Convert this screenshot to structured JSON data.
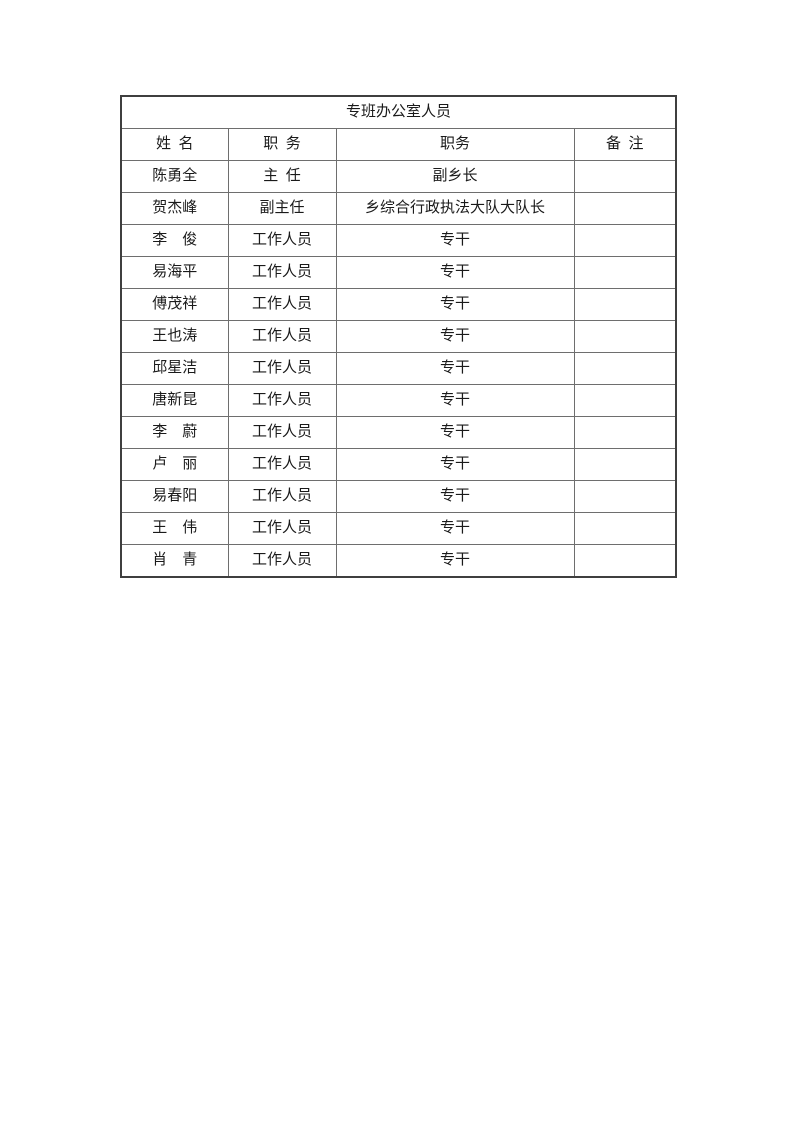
{
  "page": {
    "background": "#ffffff",
    "text_color": "#1a1a1a",
    "grid_color": "#6e6e6e",
    "outer_border_color": "#3f3f3f"
  },
  "table": {
    "title": "专班办公室人员",
    "headers": [
      "姓  名",
      "职  务",
      "职务",
      "备  注"
    ],
    "rows": [
      {
        "name": "陈勇全",
        "position": "主  任",
        "duty": "副乡长",
        "note": ""
      },
      {
        "name": "贺杰峰",
        "position": "副主任",
        "duty": "乡综合行政执法大队大队长",
        "note": ""
      },
      {
        "name": "李　俊",
        "position": "工作人员",
        "duty": "专干",
        "note": ""
      },
      {
        "name": "易海平",
        "position": "工作人员",
        "duty": "专干",
        "note": ""
      },
      {
        "name": "傅茂祥",
        "position": "工作人员",
        "duty": "专干",
        "note": ""
      },
      {
        "name": "王也涛",
        "position": "工作人员",
        "duty": "专干",
        "note": ""
      },
      {
        "name": "邱星洁",
        "position": "工作人员",
        "duty": "专干",
        "note": ""
      },
      {
        "name": "唐新昆",
        "position": "工作人员",
        "duty": "专干",
        "note": ""
      },
      {
        "name": "李　蔚",
        "position": "工作人员",
        "duty": "专干",
        "note": ""
      },
      {
        "name": "卢　丽",
        "position": "工作人员",
        "duty": "专干",
        "note": ""
      },
      {
        "name": "易春阳",
        "position": "工作人员",
        "duty": "专干",
        "note": ""
      },
      {
        "name": "王　伟",
        "position": "工作人员",
        "duty": "专干",
        "note": ""
      },
      {
        "name": "肖　青",
        "position": "工作人员",
        "duty": "专干",
        "note": ""
      }
    ]
  }
}
